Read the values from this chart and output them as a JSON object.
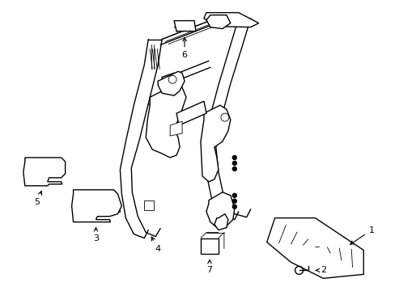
{
  "background_color": "#ffffff",
  "line_color": "#000000",
  "lw": 1.0,
  "tlw": 0.6,
  "figsize": [
    4.89,
    3.6
  ],
  "dpi": 100,
  "label_fs": 8,
  "arrow_color": "#000000"
}
